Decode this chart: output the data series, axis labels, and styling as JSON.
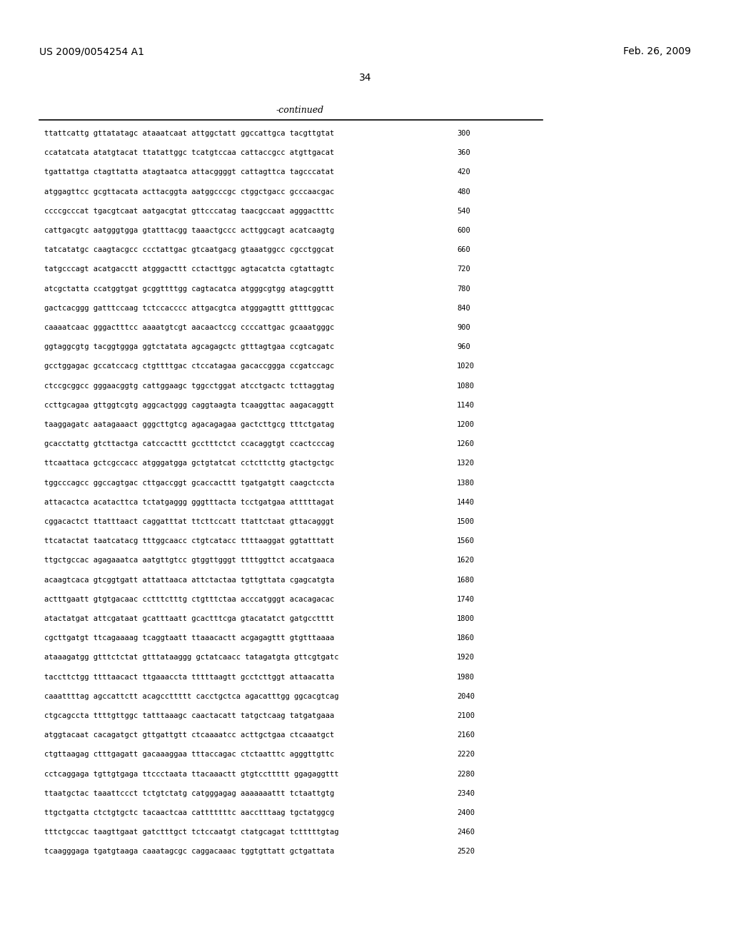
{
  "header_left": "US 2009/0054254 A1",
  "header_right": "Feb. 26, 2009",
  "page_number": "34",
  "continued_label": "-continued",
  "background_color": "#ffffff",
  "text_color": "#000000",
  "sequence_lines": [
    [
      "ttattcattg gttatatagc ataaatcaat attggctatt ggccattgca tacgttgtat",
      "300"
    ],
    [
      "ccatatcata atatgtacat ttatattggc tcatgtccaa cattaccgcc atgttgacat",
      "360"
    ],
    [
      "tgattattga ctagttatta atagtaatca attacggggt cattagttca tagcccatat",
      "420"
    ],
    [
      "atggagttcc gcgttacata acttacggta aatggcccgc ctggctgacc gcccaacgac",
      "480"
    ],
    [
      "ccccgcccat tgacgtcaat aatgacgtat gttcccatag taacgccaat agggactttc",
      "540"
    ],
    [
      "cattgacgtc aatgggtgga gtatttacgg taaactgccc acttggcagt acatcaagtg",
      "600"
    ],
    [
      "tatcatatgc caagtacgcc ccctattgac gtcaatgacg gtaaatggcc cgcctggcat",
      "660"
    ],
    [
      "tatgcccagt acatgacctt atgggacttt cctacttggc agtacatcta cgtattagtc",
      "720"
    ],
    [
      "atcgctatta ccatggtgat gcggttttgg cagtacatca atgggcgtgg atagcggttt",
      "780"
    ],
    [
      "gactcacggg gatttccaag tctccacccc attgacgtca atgggagttt gttttggcac",
      "840"
    ],
    [
      "caaaatcaac gggactttcc aaaatgtcgt aacaactccg ccccattgac gcaaatgggc",
      "900"
    ],
    [
      "ggtaggcgtg tacggtggga ggtctatata agcagagctc gtttagtgaa ccgtcagatc",
      "960"
    ],
    [
      "gcctggagac gccatccacg ctgttttgac ctccatagaa gacaccggga ccgatccagc",
      "1020"
    ],
    [
      "ctccgcggcc gggaacggtg cattggaagc tggcctggat atcctgactc tcttaggtag",
      "1080"
    ],
    [
      "ccttgcagaa gttggtcgtg aggcactggg caggtaagta tcaaggttac aagacaggtt",
      "1140"
    ],
    [
      "taaggagatc aatagaaact gggcttgtcg agacagagaa gactcttgcg tttctgatag",
      "1200"
    ],
    [
      "gcacctattg gtcttactga catccacttt gcctttctct ccacaggtgt ccactcccag",
      "1260"
    ],
    [
      "ttcaattaca gctcgccacc atgggatgga gctgtatcat cctcttcttg gtactgctgc",
      "1320"
    ],
    [
      "tggcccagcc ggccagtgac cttgaccggt gcaccacttt tgatgatgtt caagctccta",
      "1380"
    ],
    [
      "attacactca acatacttca tctatgaggg gggtttacta tcctgatgaa atttttagat",
      "1440"
    ],
    [
      "cggacactct ttatttaact caggatttat ttcttccatt ttattctaat gttacagggt",
      "1500"
    ],
    [
      "ttcatactat taatcatacg tttggcaacc ctgtcatacc ttttaaggat ggtatttatt",
      "1560"
    ],
    [
      "ttgctgccac agagaaatca aatgttgtcc gtggttgggt ttttggttct accatgaaca",
      "1620"
    ],
    [
      "acaagtcaca gtcggtgatt attattaaca attctactaa tgttgttata cgagcatgta",
      "1680"
    ],
    [
      "actttgaatt gtgtgacaac cctttctttg ctgtttctaa acccatgggt acacagacac",
      "1740"
    ],
    [
      "atactatgat attcgataat gcatttaatt gcactttcga gtacatatct gatgcctttt",
      "1800"
    ],
    [
      "cgcttgatgt ttcagaaaag tcaggtaatt ttaaacactt acgagagttt gtgtttaaaa",
      "1860"
    ],
    [
      "ataaagatgg gtttctctat gtttataaggg gctatcaacc tatagatgta gttcgtgatc",
      "1920"
    ],
    [
      "taccttctgg ttttaacact ttgaaaccta tttttaagtt gcctcttggt attaacatta",
      "1980"
    ],
    [
      "caaattttag agccattctt acagccttttt cacctgctca agacatttgg ggcacgtcag",
      "2040"
    ],
    [
      "ctgcagccta ttttgttggc tatttaaagc caactacatt tatgctcaag tatgatgaaa",
      "2100"
    ],
    [
      "atggtacaat cacagatgct gttgattgtt ctcaaaatcc acttgctgaa ctcaaatgct",
      "2160"
    ],
    [
      "ctgttaagag ctttgagatt gacaaaggaa tttaccagac ctctaatttc agggttgttc",
      "2220"
    ],
    [
      "cctcaggaga tgttgtgaga ttccctaata ttacaaactt gtgtccttttt ggagaggttt",
      "2280"
    ],
    [
      "ttaatgctac taaattccct tctgtctatg catgggagag aaaaaaattt tctaattgtg",
      "2340"
    ],
    [
      "ttgctgatta ctctgtgctc tacaactcaa catttttttc aacctttaag tgctatggcg",
      "2400"
    ],
    [
      "tttctgccac taagttgaat gatctttgct tctccaatgt ctatgcagat tctttttgtag",
      "2460"
    ],
    [
      "tcaagggaga tgatgtaaga caaatagcgc caggacaaac tggtgttatt gctgattata",
      "2520"
    ]
  ]
}
